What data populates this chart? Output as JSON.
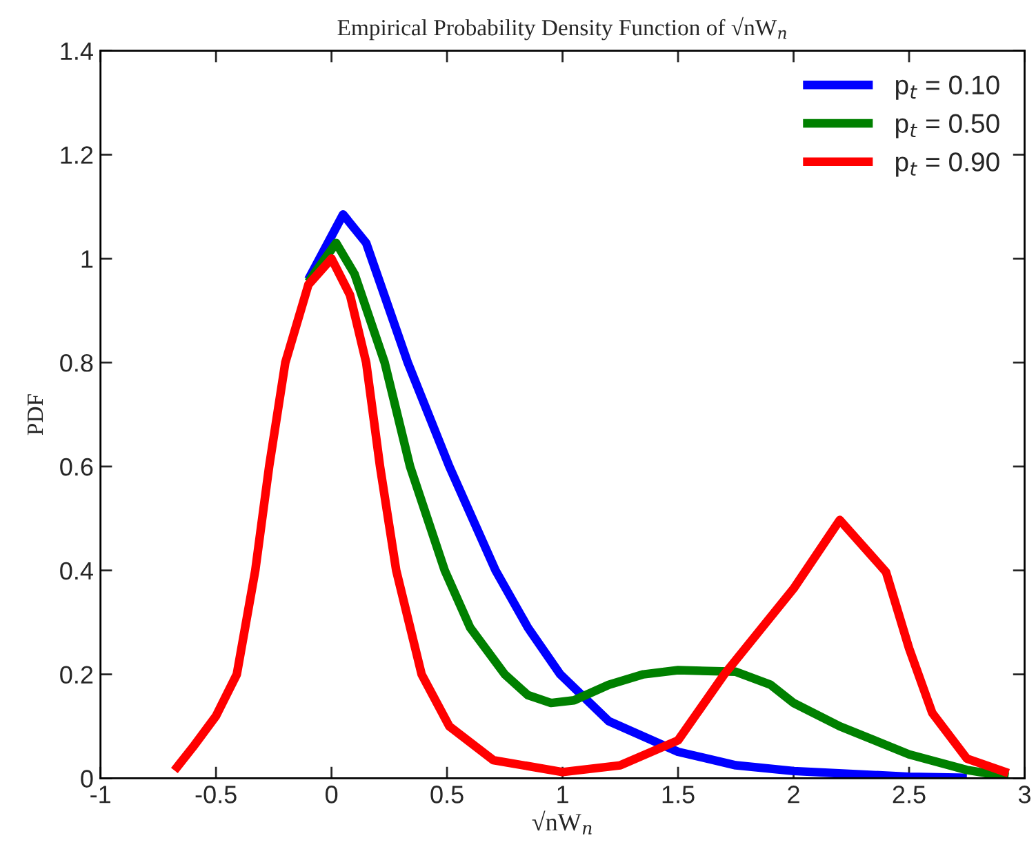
{
  "chart_data": {
    "type": "line",
    "title": "Empirical Probability Density Function of √nW$_{n}$",
    "xlabel": "√nW$_{n}$",
    "ylabel": "PDF",
    "xlim": [
      -1,
      3
    ],
    "xticks": [
      -1,
      -0.5,
      0,
      0.5,
      1,
      1.5,
      2,
      2.5,
      3
    ],
    "ylim": [
      0,
      1.4
    ],
    "yticks": [
      0,
      0.2,
      0.4,
      0.6,
      0.8,
      1,
      1.2,
      1.4
    ],
    "grid": false,
    "legend": "top right",
    "marker": "none",
    "line_style": "solid",
    "series": [
      {
        "name": "p$_{t}$ = 0.10",
        "color": "#0000ff",
        "x": [
          -0.1,
          0.05,
          0.15,
          0.33,
          0.51,
          0.71,
          0.85,
          0.99,
          1.2,
          1.5,
          1.75,
          2.0,
          2.5,
          2.75
        ],
        "values": [
          0.96,
          1.085,
          1.03,
          0.8,
          0.6,
          0.4,
          0.29,
          0.2,
          0.11,
          0.051,
          0.025,
          0.014,
          0.003,
          0.001
        ]
      },
      {
        "name": "p$_{t}$ = 0.50",
        "color": "#008000",
        "x": [
          -0.1,
          0.02,
          0.1,
          0.23,
          0.34,
          0.49,
          0.6,
          0.75,
          0.85,
          0.95,
          1.05,
          1.2,
          1.35,
          1.5,
          1.75,
          1.9,
          2.0,
          2.2,
          2.5,
          2.75,
          2.93
        ],
        "values": [
          0.955,
          1.03,
          0.97,
          0.8,
          0.6,
          0.4,
          0.29,
          0.2,
          0.16,
          0.145,
          0.15,
          0.18,
          0.2,
          0.208,
          0.205,
          0.18,
          0.145,
          0.1,
          0.046,
          0.016,
          0.003
        ]
      },
      {
        "name": "p$_{t}$ = 0.90",
        "color": "#ff0000",
        "x": [
          -0.68,
          -0.6,
          -0.5,
          -0.41,
          -0.33,
          -0.27,
          -0.2,
          -0.1,
          0,
          0.08,
          0.15,
          0.21,
          0.28,
          0.39,
          0.51,
          0.7,
          1.0,
          1.25,
          1.5,
          1.7,
          2.0,
          2.2,
          2.4,
          2.5,
          2.6,
          2.75,
          2.93
        ],
        "values": [
          0.015,
          0.06,
          0.12,
          0.2,
          0.4,
          0.6,
          0.8,
          0.95,
          1.0,
          0.93,
          0.8,
          0.6,
          0.4,
          0.2,
          0.1,
          0.035,
          0.012,
          0.025,
          0.073,
          0.2,
          0.365,
          0.497,
          0.397,
          0.25,
          0.126,
          0.038,
          0.01
        ]
      }
    ]
  }
}
